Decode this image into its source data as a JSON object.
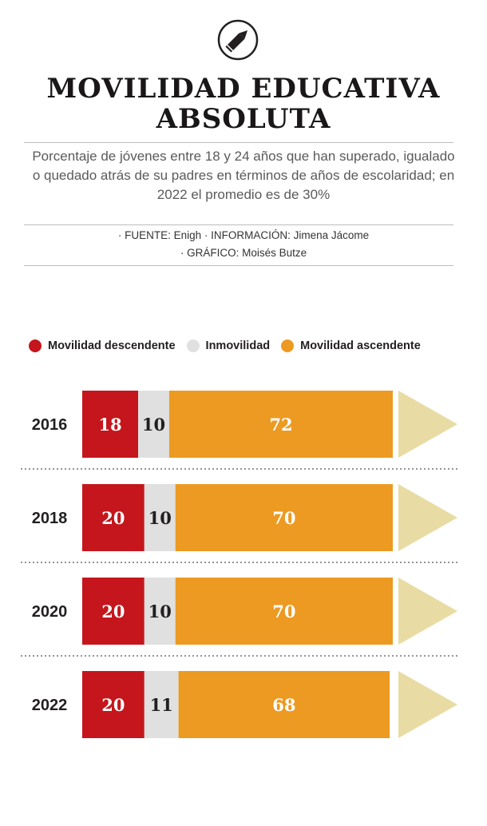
{
  "header": {
    "title_line1": "MOVILIDAD EDUCATIVA",
    "title_line2": "ABSOLUTA",
    "subtitle": "Porcentaje de jóvenes entre 18 y 24 años que han superado, igualado o quedado atrás de su padres en términos de años de escolaridad; en 2022 el promedio es de 30%",
    "credits_line1": "· FUENTE: Enigh · INFORMACIÓN: Jimena Jácome",
    "credits_line2": "· GRÁFICO: Moisés Butze"
  },
  "icons": {
    "logo": "pencil-icon"
  },
  "colors": {
    "descendente": "#c4161c",
    "inmovilidad": "#e0e0e0",
    "ascendente": "#ec9a22",
    "arrow": "#e8dca4",
    "label_light": "#ffffff",
    "label_dark": "#231f20"
  },
  "chart_data": {
    "type": "bar",
    "orientation": "horizontal",
    "stacked": true,
    "categories": [
      "2016",
      "2018",
      "2020",
      "2022"
    ],
    "series": [
      {
        "name": "Movilidad descendente",
        "values": [
          18,
          20,
          20,
          20
        ]
      },
      {
        "name": "Inmovilidad",
        "values": [
          10,
          10,
          10,
          11
        ]
      },
      {
        "name": "Movilidad ascendente",
        "values": [
          72,
          70,
          70,
          68
        ]
      }
    ],
    "title": "MOVILIDAD EDUCATIVA ABSOLUTA",
    "xlabel": "",
    "ylabel": "",
    "xlim": [
      0,
      100
    ],
    "legend": "top",
    "grid": false
  }
}
